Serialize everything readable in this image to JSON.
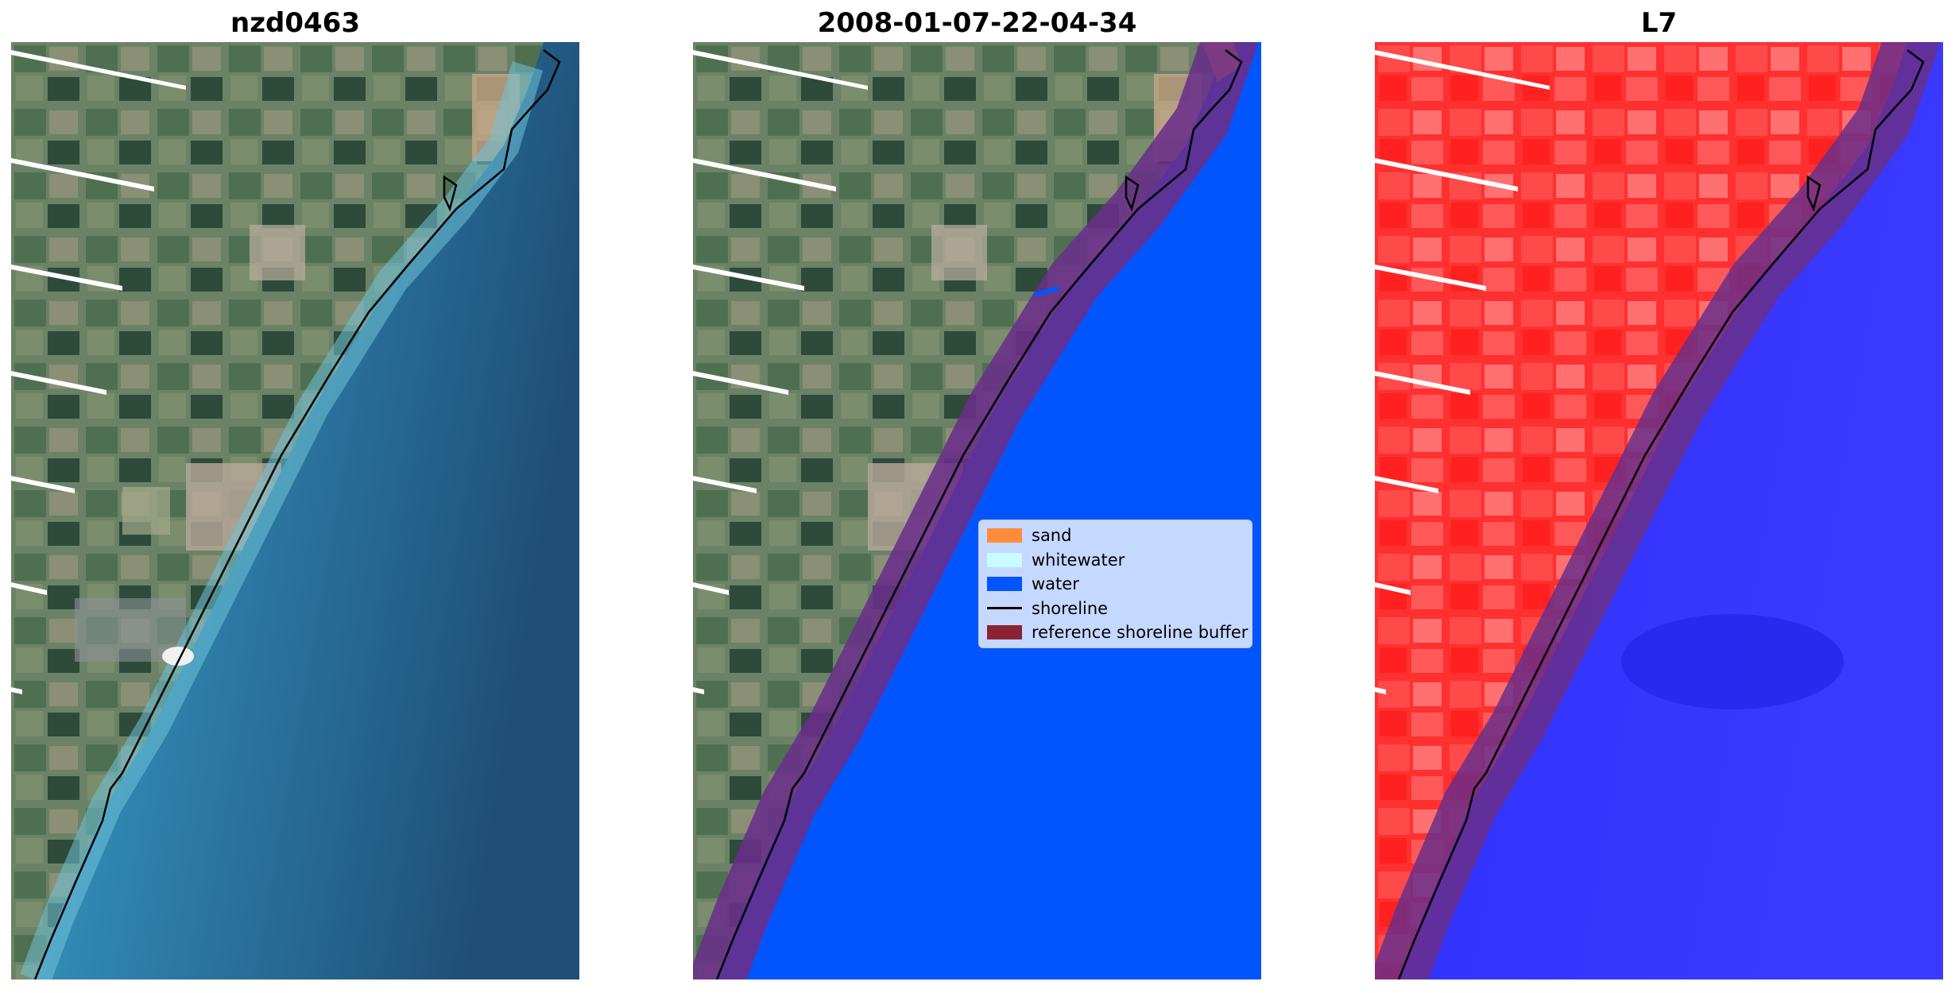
{
  "panels": [
    {
      "title": "nzd0463"
    },
    {
      "title": "2008-01-07-22-04-34"
    },
    {
      "title": "L7"
    }
  ],
  "legend": {
    "items": [
      {
        "label": "sand",
        "color": "#ff8c3a",
        "kind": "patch"
      },
      {
        "label": "whitewater",
        "color": "#c8fcff",
        "kind": "patch"
      },
      {
        "label": "water",
        "color": "#0055ff",
        "kind": "patch"
      },
      {
        "label": "shoreline",
        "color": "#000000",
        "kind": "line"
      },
      {
        "label": "reference shoreline buffer",
        "color": "#8b2332",
        "kind": "patch"
      }
    ]
  },
  "colors": {
    "land": "#5f7a5a",
    "sea_shallow": "#3a9ac0",
    "sea_deep": "#1f4f78",
    "classified_water": "#0055ff",
    "buffer": "#6a2f8a",
    "l7_land": "#ff2a2a",
    "l7_sea": "#2b2bff"
  }
}
